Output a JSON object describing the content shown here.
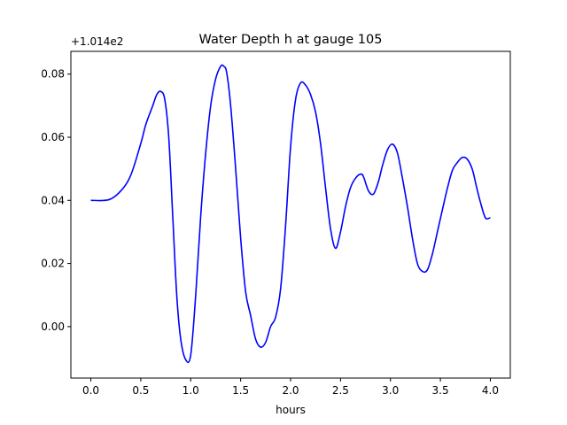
{
  "chart_data": {
    "type": "line",
    "title": "Water Depth h at gauge 105",
    "xlabel": "hours",
    "ylabel": "",
    "offset_text": "+1.014e2",
    "xlim": [
      -0.2,
      4.2
    ],
    "ylim": [
      -0.0163,
      0.0872
    ],
    "x_ticks": [
      0.0,
      0.5,
      1.0,
      1.5,
      2.0,
      2.5,
      3.0,
      3.5,
      4.0
    ],
    "x_tick_labels": [
      "0.0",
      "0.5",
      "1.0",
      "1.5",
      "2.0",
      "2.5",
      "3.0",
      "3.5",
      "4.0"
    ],
    "y_ticks": [
      0.0,
      0.02,
      0.04,
      0.06,
      0.08
    ],
    "y_tick_labels": [
      "0.00",
      "0.02",
      "0.04",
      "0.06",
      "0.08"
    ],
    "grid": false,
    "legend": "none",
    "series": [
      {
        "color": "#0000ff",
        "x": [
          0.0,
          0.18,
          0.3,
          0.4,
          0.5,
          0.55,
          0.62,
          0.66,
          0.7,
          0.74,
          0.78,
          0.82,
          0.86,
          0.9,
          0.95,
          1.0,
          1.05,
          1.1,
          1.15,
          1.2,
          1.25,
          1.3,
          1.33,
          1.36,
          1.4,
          1.45,
          1.5,
          1.55,
          1.6,
          1.65,
          1.7,
          1.75,
          1.8,
          1.85,
          1.9,
          1.95,
          2.0,
          2.05,
          2.1,
          2.15,
          2.2,
          2.25,
          2.3,
          2.35,
          2.4,
          2.45,
          2.5,
          2.55,
          2.6,
          2.65,
          2.7,
          2.73,
          2.78,
          2.83,
          2.88,
          2.92,
          2.97,
          3.02,
          3.07,
          3.12,
          3.17,
          3.22,
          3.27,
          3.32,
          3.37,
          3.42,
          3.47,
          3.52,
          3.57,
          3.62,
          3.67,
          3.72,
          3.77,
          3.82,
          3.86,
          3.9,
          3.95,
          4.0
        ],
        "y": [
          0.04,
          0.0402,
          0.043,
          0.048,
          0.058,
          0.064,
          0.07,
          0.0735,
          0.0745,
          0.072,
          0.06,
          0.035,
          0.01,
          -0.004,
          -0.0105,
          -0.009,
          0.01,
          0.035,
          0.055,
          0.07,
          0.0785,
          0.0825,
          0.0825,
          0.0805,
          0.07,
          0.05,
          0.028,
          0.011,
          0.0035,
          -0.004,
          -0.0065,
          -0.005,
          0.0,
          0.003,
          0.012,
          0.032,
          0.057,
          0.072,
          0.0772,
          0.0765,
          0.0735,
          0.068,
          0.058,
          0.044,
          0.031,
          0.0248,
          0.03,
          0.038,
          0.044,
          0.047,
          0.0483,
          0.0475,
          0.043,
          0.042,
          0.046,
          0.051,
          0.056,
          0.0578,
          0.055,
          0.047,
          0.038,
          0.028,
          0.02,
          0.0175,
          0.018,
          0.023,
          0.03,
          0.037,
          0.0438,
          0.0495,
          0.052,
          0.0536,
          0.053,
          0.0498,
          0.0445,
          0.0395,
          0.0345,
          0.0345
        ]
      }
    ]
  }
}
